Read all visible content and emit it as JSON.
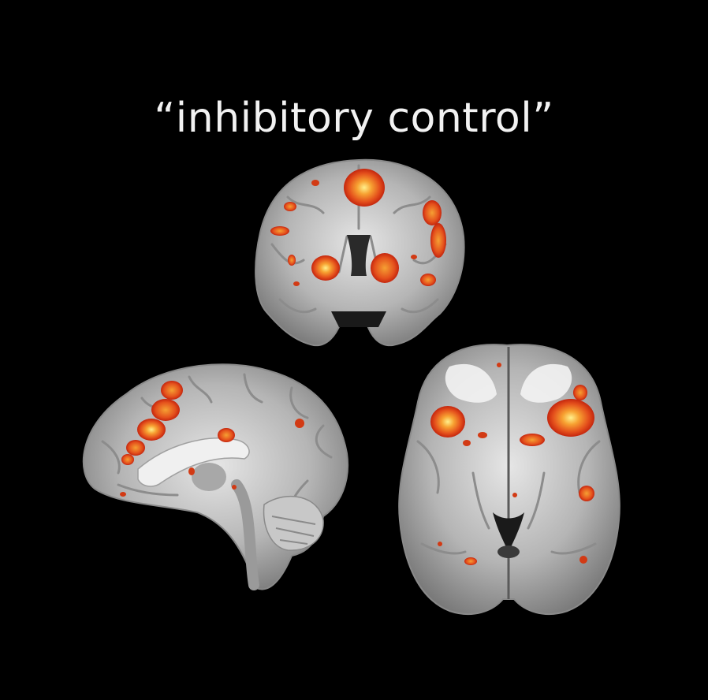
{
  "figure": {
    "title": "“inhibitory control”",
    "background_color": "#000000",
    "activation_colors": [
      "#c4260e",
      "#e8501c",
      "#f5a033",
      "#ffe98a"
    ],
    "views": [
      "coronal",
      "sagittal",
      "axial"
    ]
  }
}
